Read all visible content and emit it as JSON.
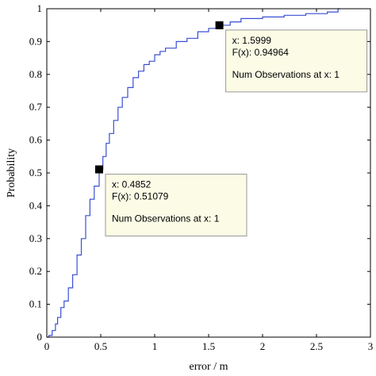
{
  "chart_data": {
    "type": "line",
    "title": "",
    "xlabel": "error / m",
    "ylabel": "Probability",
    "xlim": [
      0,
      3
    ],
    "ylim": [
      0,
      1
    ],
    "grid": false,
    "x_ticks": [
      "0",
      "0.5",
      "1",
      "1.5",
      "2",
      "2.5",
      "3"
    ],
    "y_ticks": [
      "0",
      "0.1",
      "0.2",
      "0.3",
      "0.4",
      "0.5",
      "0.6",
      "0.7",
      "0.8",
      "0.9",
      "1"
    ],
    "colors": {
      "line": "#3a4fd4",
      "tooltip_bg": "#fbfbe6",
      "tooltip_border": "#999999",
      "marker": "#000000"
    },
    "series": [
      {
        "x": [
          0.0,
          0.02,
          0.05,
          0.08,
          0.1,
          0.13,
          0.16,
          0.2,
          0.24,
          0.28,
          0.32,
          0.36,
          0.4,
          0.44,
          0.4852,
          0.52,
          0.55,
          0.58,
          0.62,
          0.66,
          0.7,
          0.75,
          0.8,
          0.85,
          0.9,
          0.95,
          1.0,
          1.05,
          1.1,
          1.2,
          1.3,
          1.4,
          1.5,
          1.5999,
          1.7,
          1.8,
          2.0,
          2.2,
          2.4,
          2.6,
          2.7,
          2.72
        ],
        "y": [
          0.0,
          0.005,
          0.02,
          0.04,
          0.06,
          0.09,
          0.11,
          0.15,
          0.19,
          0.25,
          0.3,
          0.37,
          0.42,
          0.46,
          0.51079,
          0.55,
          0.59,
          0.62,
          0.66,
          0.7,
          0.73,
          0.76,
          0.79,
          0.81,
          0.83,
          0.84,
          0.86,
          0.87,
          0.88,
          0.9,
          0.91,
          0.93,
          0.94,
          0.94964,
          0.96,
          0.97,
          0.975,
          0.98,
          0.985,
          0.99,
          1.0,
          1.0
        ]
      }
    ],
    "annotations": [
      {
        "x": 0.4852,
        "y": 0.51079,
        "line1": "x: 0.4852",
        "line2": "F(x): 0.51079",
        "line3": "Num Observations at x: 1"
      },
      {
        "x": 1.5999,
        "y": 0.94964,
        "line1": "x: 1.5999",
        "line2": "F(x): 0.94964",
        "line3": "Num Observations at x: 1"
      }
    ]
  }
}
